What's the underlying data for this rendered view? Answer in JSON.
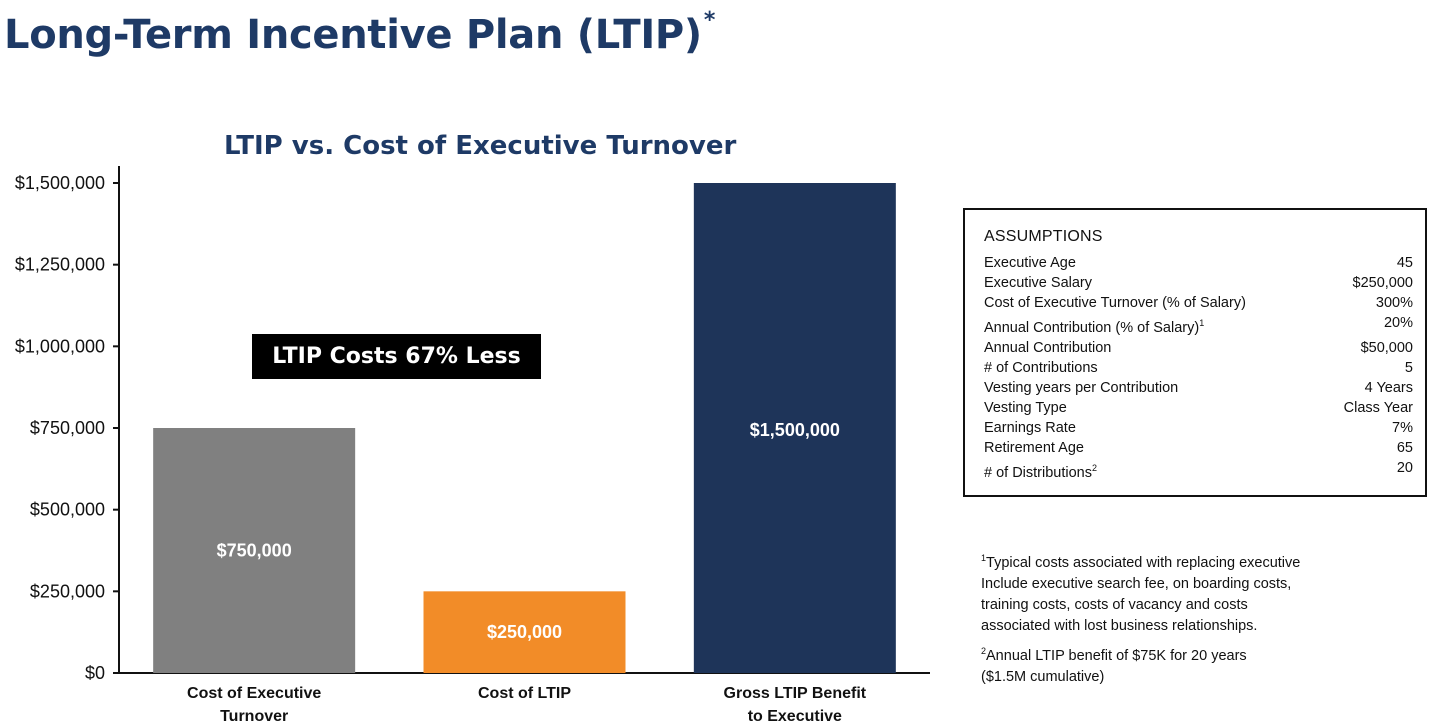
{
  "page": {
    "title": "Long-Term Incentive Plan (LTIP)",
    "title_mark": "*"
  },
  "chart_data": {
    "type": "bar",
    "title": "LTIP vs. Cost of Executive Turnover",
    "categories": [
      [
        "Cost of Executive",
        "Turnover"
      ],
      [
        "Cost of LTIP"
      ],
      [
        "Gross LTIP Benefit",
        "to Executive"
      ]
    ],
    "values": [
      750000,
      250000,
      1500000
    ],
    "value_labels": [
      "$750,000",
      "$250,000",
      "$1,500,000"
    ],
    "colors": [
      "#808080",
      "#f28c28",
      "#1e3459"
    ],
    "ylim": [
      0,
      1500000
    ],
    "yticks": [
      0,
      250000,
      500000,
      750000,
      1000000,
      1250000,
      1500000
    ],
    "ytick_labels": [
      "$0",
      "$250,000",
      "$500,000",
      "$750,000",
      "$1,000,000",
      "$1,250,000",
      "$1,500,000"
    ],
    "xlabel": "",
    "ylabel": "",
    "grid": false,
    "legend": "none",
    "annotation": "LTIP Costs 67% Less"
  },
  "assumptions": {
    "heading": "ASSUMPTIONS",
    "rows": [
      {
        "label": "Executive Age",
        "mark": "",
        "value": "45"
      },
      {
        "label": "Executive Salary",
        "mark": "",
        "value": "$250,000"
      },
      {
        "label": "Cost of Executive Turnover (% of Salary)",
        "mark": "",
        "value": "300%"
      },
      {
        "label": "Annual Contribution (% of Salary)",
        "mark": "1",
        "value": "20%"
      },
      {
        "label": "Annual Contribution",
        "mark": "",
        "value": "$50,000"
      },
      {
        "label": "#  of Contributions",
        "mark": "",
        "value": "5"
      },
      {
        "label": "Vesting years per Contribution",
        "mark": "",
        "value": "4 Years"
      },
      {
        "label": "Vesting Type",
        "mark": "",
        "value": "Class Year"
      },
      {
        "label": "Earnings Rate",
        "mark": "",
        "value": "7%"
      },
      {
        "label": "Retirement Age",
        "mark": "",
        "value": "65"
      },
      {
        "label": "# of Distributions",
        "mark": "2",
        "value": "20"
      }
    ]
  },
  "footnotes": [
    {
      "mark": "1",
      "lines": [
        "Typical costs associated with replacing executive",
        "Include executive search fee, on boarding costs,",
        "training costs, costs of vacancy and costs",
        "associated with lost business relationships."
      ]
    },
    {
      "mark": "2",
      "lines": [
        "Annual LTIP benefit of $75K for 20 years",
        "($1.5M cumulative)"
      ]
    }
  ]
}
